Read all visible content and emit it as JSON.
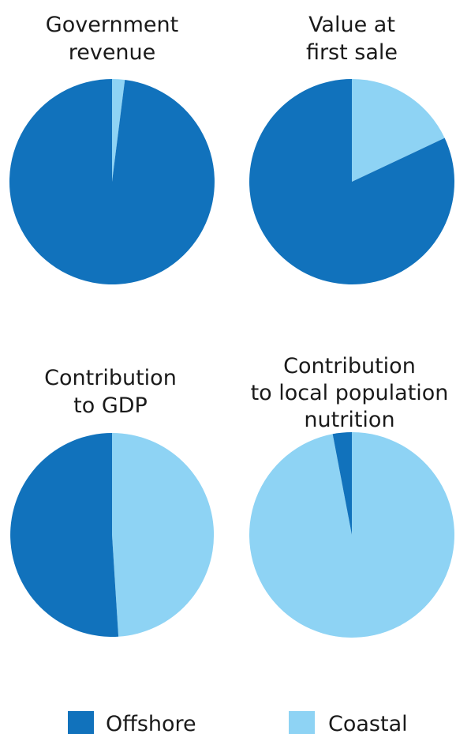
{
  "chart_data": [
    {
      "type": "pie",
      "title": [
        "Government",
        "revenue"
      ],
      "slices": [
        {
          "name": "Coastal",
          "value": 2
        },
        {
          "name": "Offshore",
          "value": 98
        }
      ]
    },
    {
      "type": "pie",
      "title": [
        "Value at",
        "first sale"
      ],
      "slices": [
        {
          "name": "Coastal",
          "value": 18
        },
        {
          "name": "Offshore",
          "value": 82
        }
      ]
    },
    {
      "type": "pie",
      "title": [
        "Contribution",
        "to GDP"
      ],
      "slices": [
        {
          "name": "Coastal",
          "value": 49
        },
        {
          "name": "Offshore",
          "value": 51
        }
      ]
    },
    {
      "type": "pie",
      "title": [
        "Contribution",
        "to local population",
        "nutrition"
      ],
      "slices": [
        {
          "name": "Coastal",
          "value": 97
        },
        {
          "name": "Offshore",
          "value": 3
        }
      ]
    }
  ],
  "legend": {
    "placement": "bottom",
    "items": [
      {
        "name": "Offshore",
        "color": "#1172bc"
      },
      {
        "name": "Coastal",
        "color": "#8ed3f4"
      }
    ]
  },
  "colors": {
    "Offshore": "#1172bc",
    "Coastal": "#8ed3f4"
  }
}
